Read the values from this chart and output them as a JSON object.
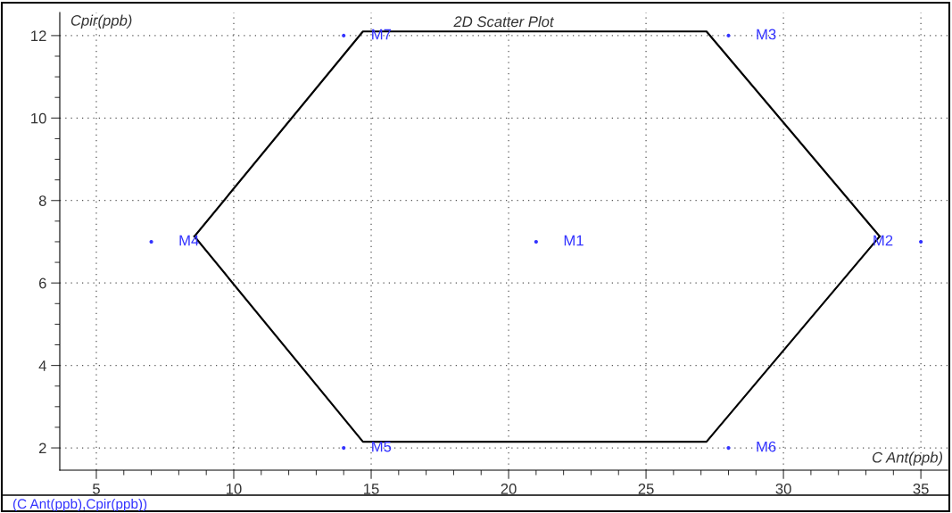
{
  "chart_data": {
    "type": "scatter",
    "title": "2D Scatter Plot",
    "xlabel": "C Ant(ppb)",
    "ylabel": "Cpir(ppb)",
    "xlim": [
      3.67,
      35.97
    ],
    "ylim": [
      1.46,
      12.56
    ],
    "xticks": [
      5,
      {
        "value": 6,
        "label": null
      },
      {
        "value": 7,
        "label": null
      },
      {
        "value": 8,
        "label": null
      },
      {
        "value": 9,
        "label": null
      },
      10,
      {
        "value": 11,
        "label": null
      },
      {
        "value": 12,
        "label": null
      },
      {
        "value": 13,
        "label": null
      },
      {
        "value": 14,
        "label": null
      },
      15,
      {
        "value": 16,
        "label": null
      },
      {
        "value": 17,
        "label": null
      },
      {
        "value": 18,
        "label": null
      },
      {
        "value": 19,
        "label": null
      },
      20,
      {
        "value": 21,
        "label": null
      },
      {
        "value": 22,
        "label": null
      },
      {
        "value": 23,
        "label": null
      },
      {
        "value": 24,
        "label": null
      },
      25,
      {
        "value": 26,
        "label": null
      },
      {
        "value": 27,
        "label": null
      },
      {
        "value": 28,
        "label": null
      },
      {
        "value": 29,
        "label": null
      },
      30,
      {
        "value": 31,
        "label": null
      },
      {
        "value": 32,
        "label": null
      },
      {
        "value": 33,
        "label": null
      },
      {
        "value": 34,
        "label": null
      },
      35
    ],
    "yticks": [
      2,
      {
        "value": 2.5,
        "label": null
      },
      {
        "value": 3,
        "label": null
      },
      {
        "value": 3.5,
        "label": null
      },
      4,
      {
        "value": 4.5,
        "label": null
      },
      {
        "value": 5,
        "label": null
      },
      {
        "value": 5.5,
        "label": null
      },
      6,
      {
        "value": 6.5,
        "label": null
      },
      {
        "value": 7,
        "label": null
      },
      {
        "value": 7.5,
        "label": null
      },
      8,
      {
        "value": 8.5,
        "label": null
      },
      {
        "value": 9,
        "label": null
      },
      {
        "value": 9.5,
        "label": null
      },
      10,
      {
        "value": 10.5,
        "label": null
      },
      {
        "value": 11,
        "label": null
      },
      {
        "value": 11.5,
        "label": null
      },
      12
    ],
    "grid": true,
    "series": [
      {
        "marker": "circle",
        "color": "#3333ff",
        "x": [
          21,
          35,
          28,
          7,
          14,
          28,
          14
        ],
        "values": [
          7,
          7,
          12,
          7,
          2,
          2,
          12
        ]
      },
      {
        "type": "line",
        "marker": "none",
        "line_style": "solid",
        "color": "#000000",
        "x": [
          8.57,
          14.7,
          27.2,
          33.5
        ],
        "values": [
          7.13,
          12.1,
          12.1,
          7.13
        ]
      },
      {
        "type": "line",
        "marker": "none",
        "line_style": "solid",
        "color": "#000000",
        "x": [
          8.57,
          14.7,
          27.2,
          33.5
        ],
        "values": [
          7.13,
          2.15,
          2.15,
          7.13
        ]
      }
    ],
    "annotations": [
      {
        "text": "M1",
        "x": 21,
        "y": 7
      },
      {
        "text": "M2",
        "x": 35,
        "y": 7
      },
      {
        "text": "M3",
        "x": 28,
        "y": 12
      },
      {
        "text": "M4",
        "x": 7,
        "y": 7
      },
      {
        "text": "M5",
        "x": 14,
        "y": 2
      },
      {
        "text": "M6",
        "x": 28,
        "y": 2
      },
      {
        "text": "M7",
        "x": 14,
        "y": 12
      },
      "(C Ant(ppb),Cpir(ppb))"
    ]
  }
}
